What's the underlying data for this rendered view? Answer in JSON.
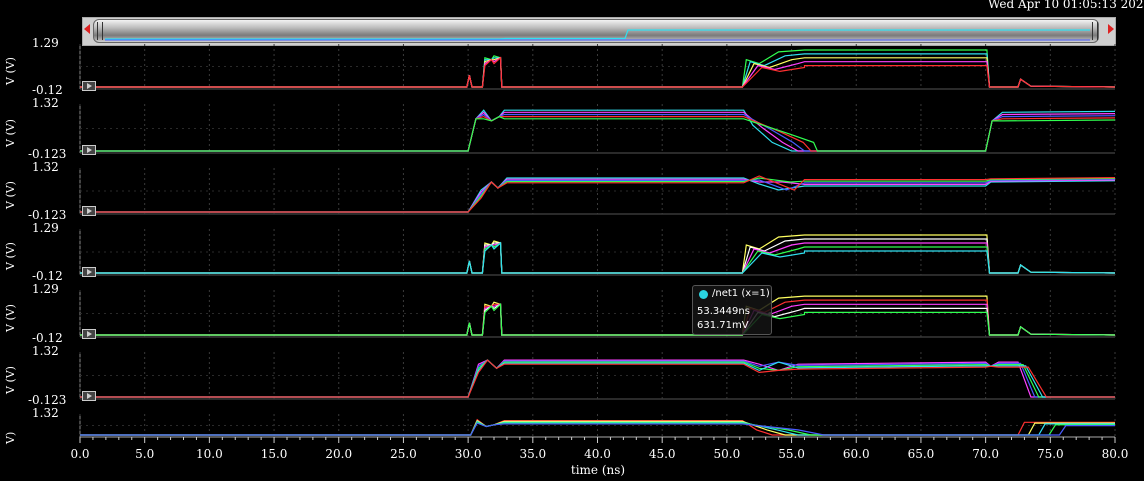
{
  "header": {
    "timestamp": "Wed Apr 10 01:05:13 202"
  },
  "colors": {
    "background": "#000000",
    "red": "#ff3030",
    "green": "#30ff50",
    "cyan": "#30e0f0",
    "blue": "#4a5cff",
    "magenta": "#ff40ff",
    "yellow": "#ffff60",
    "white": "#ffffff"
  },
  "xaxis": {
    "label": "time (ns)",
    "ticks": [
      "0.0",
      "5.0",
      "10.0",
      "15.0",
      "20.0",
      "25.0",
      "30.0",
      "35.0",
      "40.0",
      "45.0",
      "50.0",
      "55.0",
      "60.0",
      "65.0",
      "70.0",
      "75.0",
      "80.0"
    ]
  },
  "panels": [
    {
      "ylabel": "V (V)",
      "ymax": "1.29",
      "ymin": "-0.12"
    },
    {
      "ylabel": "V (V)",
      "ymax": "1.32",
      "ymin": "-0.123"
    },
    {
      "ylabel": "V (V)",
      "ymax": "1.32",
      "ymin": "-0.123"
    },
    {
      "ylabel": "V (V)",
      "ymax": "1.29",
      "ymin": "-0.12"
    },
    {
      "ylabel": "V (V)",
      "ymax": "1.29",
      "ymin": "-0.12"
    },
    {
      "ylabel": "V (V)",
      "ymax": "1.32",
      "ymin": "-0.123"
    },
    {
      "ylabel": "V)",
      "ymax": "1.32",
      "ymin": ""
    }
  ],
  "tooltip": {
    "name": "/net1 (x=1)",
    "x_value": "53.3449ns",
    "y_value": "631.71mV"
  },
  "chart_data": {
    "type": "line",
    "xlabel": "time (ns)",
    "xlim": [
      0,
      80
    ],
    "panels": [
      {
        "ylim": [
          -0.12,
          1.29
        ],
        "kind": "pulse_high",
        "series": [
          "#30ff50",
          "#30e0f0",
          "#ffff60",
          "#ff40ff",
          "#ff3030"
        ]
      },
      {
        "ylim": [
          -0.123,
          1.32
        ],
        "kind": "step_low_high",
        "series": [
          "#30e0f0",
          "#ff40ff",
          "#4a5cff",
          "#ff3030",
          "#30ff50"
        ]
      },
      {
        "ylim": [
          -0.123,
          1.32
        ],
        "kind": "step_mid",
        "series": [
          "#30e0f0",
          "#ff40ff",
          "#4a5cff",
          "#30ff50",
          "#ff3030"
        ]
      },
      {
        "ylim": [
          -0.12,
          1.29
        ],
        "kind": "pulse_high",
        "series": [
          "#ffff60",
          "#ffffff",
          "#ff40ff",
          "#30ff50",
          "#30e0f0"
        ]
      },
      {
        "ylim": [
          -0.12,
          1.29
        ],
        "kind": "pulse_high",
        "series": [
          "#ffff60",
          "#ff3030",
          "#ff40ff",
          "#ffffff",
          "#30ff50"
        ]
      },
      {
        "ylim": [
          -0.123,
          1.32
        ],
        "kind": "step_fall",
        "series": [
          "#ff40ff",
          "#4a5cff",
          "#30ff50",
          "#30e0f0",
          "#ff3030"
        ]
      },
      {
        "ylim": [
          -0.123,
          1.32
        ],
        "kind": "partial",
        "series": [
          "#ff3030",
          "#ffff60",
          "#30e0f0",
          "#30ff50",
          "#4a5cff"
        ]
      }
    ]
  }
}
